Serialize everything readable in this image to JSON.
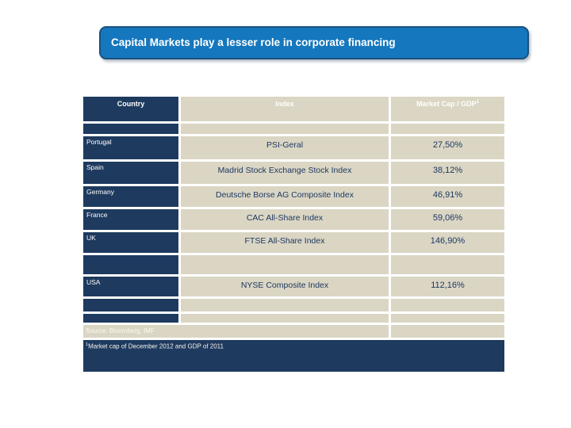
{
  "slide": {
    "title": "Capital Markets play a lesser role in corporate financing"
  },
  "table": {
    "headers": {
      "country": "Country",
      "index": "Index",
      "market_cap": "Market Cap / GDP",
      "market_cap_sup": "1"
    },
    "rows": [
      {
        "country": "Portugal",
        "index": "PSI-Geral",
        "market_cap": "27,50%"
      },
      {
        "country": "Spain",
        "index": "Madrid Stock Exchange Stock Index",
        "market_cap": "38,12%"
      },
      {
        "country": "Germany",
        "index": "Deutsche Borse AG Composite Index",
        "market_cap": "46,91%"
      },
      {
        "country": "France",
        "index": "CAC All-Share Index",
        "market_cap": "59,06%"
      },
      {
        "country": "UK",
        "index": "FTSE All-Share Index",
        "market_cap": "146,90%"
      },
      {
        "country": "USA",
        "index": "NYSE Composite Index",
        "market_cap": "112,16%"
      }
    ],
    "source_note": "Source: Bloomberg, IMF",
    "footnote_sup": "1",
    "footnote": "Market cap of December 2012 and GDP of 2011"
  },
  "colors": {
    "navy": "#1e3a5f",
    "beige": "#dad6c3",
    "title_blue": "#1577bd",
    "cell_text_navy": "#1f3864",
    "white": "#ffffff"
  }
}
